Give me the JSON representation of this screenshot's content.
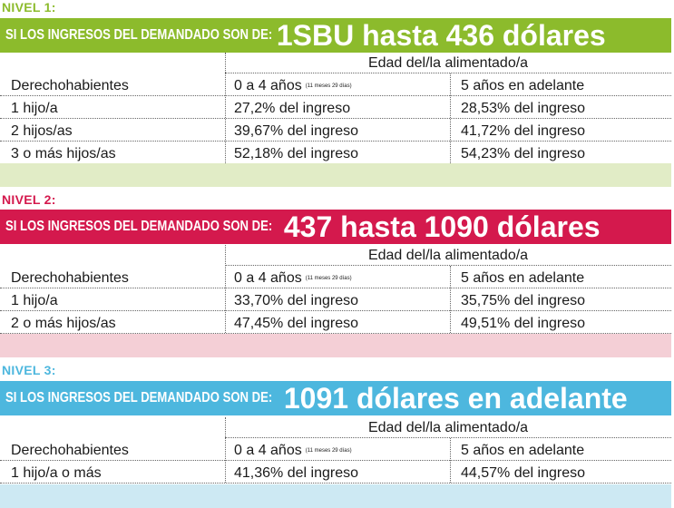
{
  "colors": {
    "level1": "#8cbb2c",
    "level1_footer": "#e1ecc6",
    "level2": "#d4194d",
    "level2_footer": "#f4cfd6",
    "level3": "#4db7de",
    "level3_footer": "#cde9f3"
  },
  "levels": [
    {
      "label": "NIVEL 1:",
      "banner_prefix": "SI LOS INGRESOS DEL DEMANDADO SON DE:",
      "banner_highlight": "1SBU hasta 436 dólares",
      "group_header": "Edad del/la alimentado/a",
      "col_headers": {
        "c1": "Derechohabientes",
        "c2": "0 a 4 años",
        "c2_note": "(11 meses 29 días)",
        "c3": "5 años en adelante"
      },
      "rows": [
        {
          "c1": "1 hijo/a",
          "c2": "27,2% del ingreso",
          "c3": "28,53% del ingreso"
        },
        {
          "c1": "2 hijos/as",
          "c2": "39,67% del ingreso",
          "c3": "41,72% del ingreso"
        },
        {
          "c1": "3 o más hijos/as",
          "c2": "52,18% del ingreso",
          "c3": "54,23% del ingreso"
        }
      ]
    },
    {
      "label": "NIVEL 2:",
      "banner_prefix": "SI LOS INGRESOS DEL DEMANDADO SON DE:",
      "banner_highlight": "437 hasta 1090 dólares",
      "group_header": "Edad del/la alimentado/a",
      "col_headers": {
        "c1": "Derechohabientes",
        "c2": "0 a 4 años",
        "c2_note": "(11 meses 29 días)",
        "c3": "5 años en adelante"
      },
      "rows": [
        {
          "c1": "1 hijo/a",
          "c2": "33,70% del ingreso",
          "c3": "35,75% del ingreso"
        },
        {
          "c1": "2 o más hijos/as",
          "c2": "47,45% del ingreso",
          "c3": "49,51% del ingreso"
        }
      ]
    },
    {
      "label": "NIVEL 3:",
      "banner_prefix": "SI LOS INGRESOS DEL DEMANDADO SON DE:",
      "banner_highlight": "1091 dólares en adelante",
      "group_header": "Edad del/la alimentado/a",
      "col_headers": {
        "c1": "Derechohabientes",
        "c2": "0 a 4 años",
        "c2_note": "(11 meses 29 días)",
        "c3": "5 años en adelante"
      },
      "rows": [
        {
          "c1": "1 hijo/a o más",
          "c2": "41,36% del ingreso",
          "c3": "44,57% del ingreso"
        }
      ]
    }
  ]
}
